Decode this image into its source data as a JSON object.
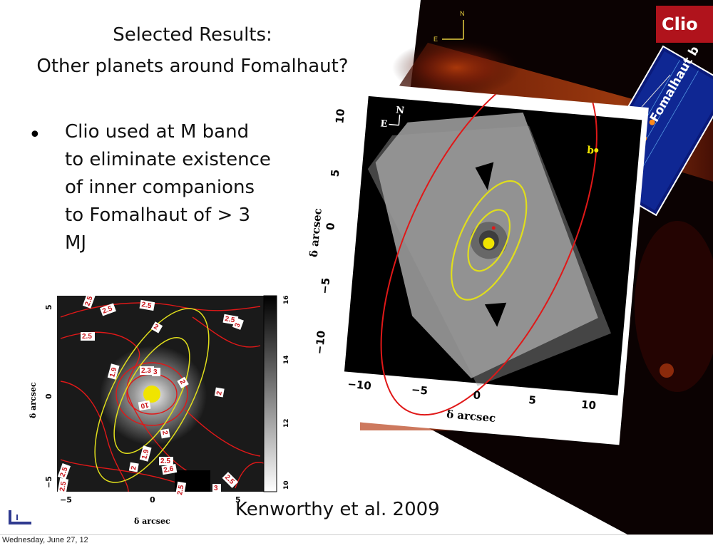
{
  "title": {
    "line1": "Selected Results:",
    "line2": "Other planets around Fomalhaut?"
  },
  "bullet": {
    "lines": [
      "Clio used at M band",
      "to eliminate existence",
      "of inner companions",
      "to Fomalhaut of > 3",
      "MJ"
    ]
  },
  "citation": "Kenworthy et al. 2009",
  "footer": "Wednesday, June 27, 12",
  "badge": {
    "text": "Clio",
    "color": "#b0131c"
  },
  "background_image": {
    "compass_n": "N",
    "compass_e": "E",
    "inset_label": "Fomalhaut b"
  },
  "large_figure": {
    "compass_n": "N",
    "compass_e": "E",
    "marker_label": "b",
    "xlabel": "δ arcsec",
    "ylabel": "δ arcsec",
    "xticks": [
      "−10",
      "−5",
      "0",
      "5",
      "10"
    ],
    "yticks": [
      "10",
      "5",
      "0",
      "−5",
      "−10"
    ],
    "ellipse_color": "#e0de1c",
    "orbit_color": "#e01818"
  },
  "small_figure": {
    "xlabel": "δ arcsec",
    "ylabel": "δ arcsec",
    "xticks": [
      "−5",
      "0",
      "5"
    ],
    "yticks": [
      "5",
      "0",
      "−5"
    ],
    "colorbar_ticks": [
      "16",
      "14",
      "12",
      "10"
    ],
    "contour_labels": [
      "2.5",
      "2.5",
      "2.5",
      "2.5",
      "3",
      "2",
      "1.9",
      "2.3",
      "3",
      "2",
      "2",
      "2",
      "10",
      "2",
      "1.9",
      "2.5",
      "2.6",
      "2.5",
      "2.5",
      "2.5",
      "3",
      "2.5",
      "2.5"
    ]
  }
}
